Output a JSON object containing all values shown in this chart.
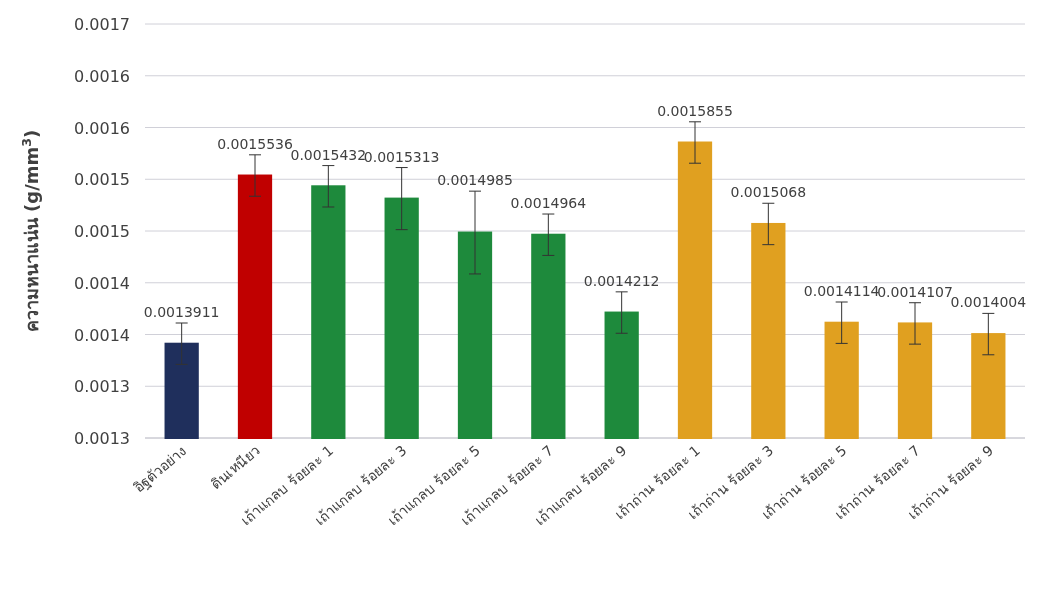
{
  "chart_data": {
    "type": "bar",
    "ylabel": "ความหนาแน่น (g/mm$^{3}$)",
    "categories": [
      "อิฐตัวอย่าง",
      "ดินเหนียว",
      "เถ้าแกลบ ร้อยละ 1",
      "เถ้าแกลบ ร้อยละ 3",
      "เถ้าแกลบ ร้อยละ 5",
      "เถ้าแกลบ ร้อยละ 7",
      "เถ้าแกลบ ร้อยละ 9",
      "เถ้าถ่าน ร้อยละ 1",
      "เถ้าถ่าน ร้อยละ 3",
      "เถ้าถ่าน ร้อยละ 5",
      "เถ้าถ่าน ร้อยละ 7",
      "เถ้าถ่าน ร้อยละ 9"
    ],
    "values": [
      0.0013911,
      0.0015536,
      0.0015432,
      0.0015313,
      0.0014985,
      0.0014964,
      0.0014212,
      0.0015855,
      0.0015068,
      0.0014114,
      0.0014107,
      0.0014004
    ],
    "errors": [
      2e-05,
      2e-05,
      2e-05,
      3e-05,
      4e-05,
      2e-05,
      2e-05,
      2e-05,
      2e-05,
      2e-05,
      2e-05,
      2e-05
    ],
    "colors": [
      "#1f2f5c",
      "#c00000",
      "#1e8a3c",
      "#1e8a3c",
      "#1e8a3c",
      "#1e8a3c",
      "#1e8a3c",
      "#e0a020",
      "#e0a020",
      "#e0a020",
      "#e0a020",
      "#e0a020"
    ],
    "data_labels": true,
    "ylim": [
      0.0013,
      0.0017
    ],
    "yticks": [
      0.0013,
      {
        "value": 0.00135,
        "label": "0.0013"
      },
      0.0014,
      {
        "value": 0.00145,
        "label": "0.0014"
      },
      0.0015,
      {
        "value": 0.00155,
        "label": "0.0015"
      },
      0.0016,
      {
        "value": 0.00165,
        "label": "0.0016"
      },
      0.0017
    ],
    "grid": "y"
  }
}
